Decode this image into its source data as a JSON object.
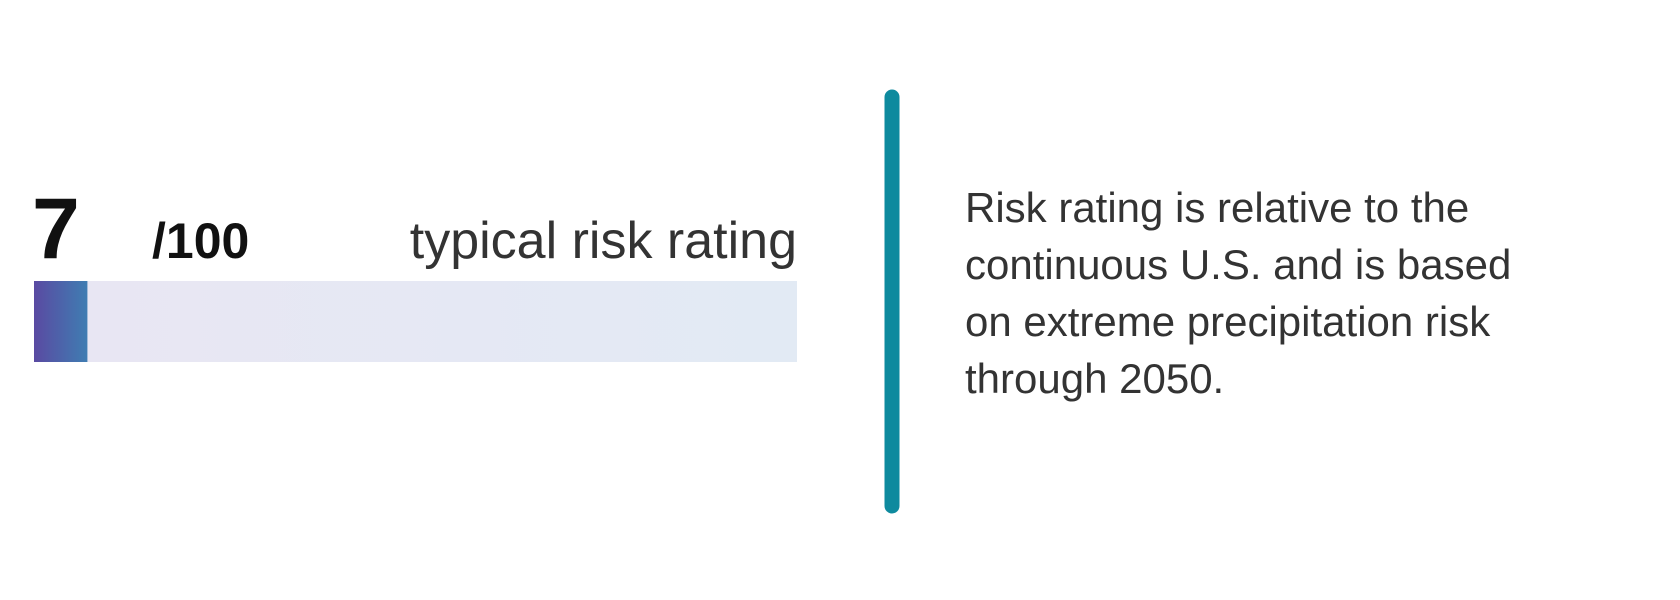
{
  "rating": {
    "score": 7,
    "max": {
      "value": 100,
      "label": "/100"
    },
    "label": "typical risk rating"
  },
  "description": {
    "lines": [
      "Risk rating is relative to the",
      "continuous U.S. and is based",
      "on extreme precipitation risk",
      "through 2050."
    ]
  }
}
